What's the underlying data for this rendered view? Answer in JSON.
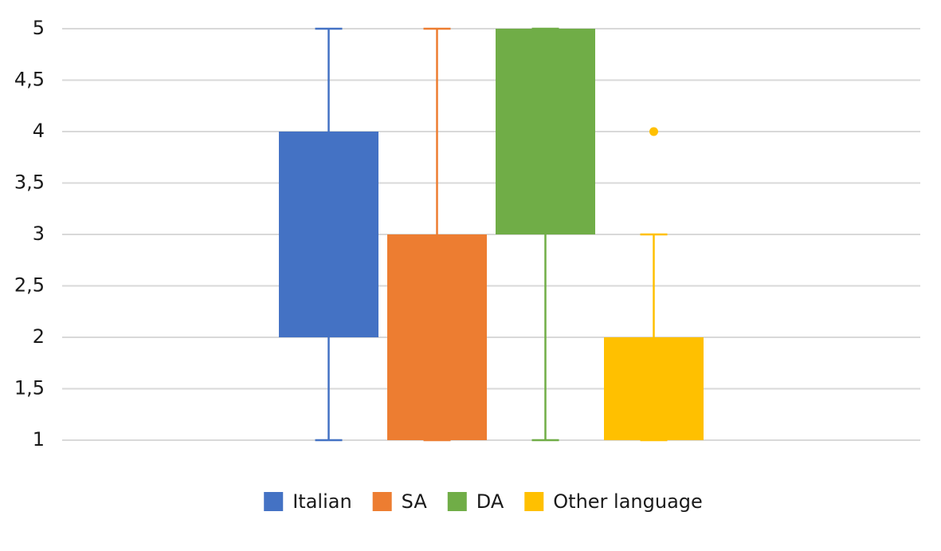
{
  "chart_data": {
    "type": "box",
    "ylim": [
      1,
      5
    ],
    "yticks": [
      1,
      {
        "value": 1.5,
        "label": "1,5"
      },
      2,
      {
        "value": 2.5,
        "label": "2,5"
      },
      3,
      {
        "value": 3.5,
        "label": "3,5"
      },
      4,
      {
        "value": 4.5,
        "label": "4,5"
      },
      5
    ],
    "grid": true,
    "legend": "bottom",
    "series": [
      {
        "name": "Italian",
        "color": "#4472c4",
        "min": 1,
        "q1": 2,
        "q3": 4,
        "max": 5
      },
      {
        "name": "SA",
        "color": "#ed7d31",
        "min": 1,
        "q1": 1,
        "q3": 3,
        "max": 5
      },
      {
        "name": "DA",
        "color": "#70ad47",
        "min": 1,
        "q1": 3,
        "q3": 5,
        "max": 5
      },
      {
        "name": "Other language",
        "color": "#ffc000",
        "min": 1,
        "q1": 1,
        "q3": 2,
        "max": 3,
        "outliers": [
          4
        ]
      }
    ]
  }
}
